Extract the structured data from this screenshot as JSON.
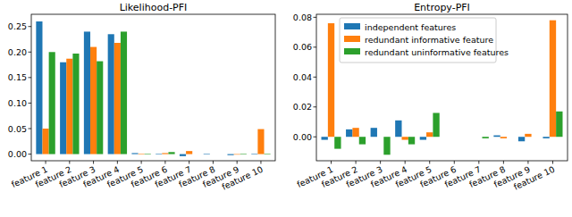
{
  "chart_data": [
    {
      "type": "bar",
      "title": "Likelihood-PFI",
      "categories": [
        "feature 1",
        "feature 2",
        "feature 3",
        "feature 4",
        "feature 5",
        "feature 6",
        "feature 7",
        "feature 8",
        "feature 9",
        "feature 10"
      ],
      "series": [
        {
          "color": "#1f77b4",
          "values": [
            0.26,
            0.18,
            0.24,
            0.235,
            0.002,
            0.001,
            -0.004,
            0.001,
            -0.002,
            0.001
          ]
        },
        {
          "color": "#ff7f0e",
          "values": [
            0.05,
            0.187,
            0.21,
            0.218,
            0.001,
            0.002,
            0.006,
            0.0,
            -0.001,
            0.049
          ]
        },
        {
          "color": "#2ca02c",
          "values": [
            0.2,
            0.197,
            0.182,
            0.24,
            0.001,
            0.004,
            0.0,
            0.0,
            0.001,
            0.001
          ]
        }
      ],
      "ylim": [
        -0.013,
        0.274
      ],
      "yticks": [
        {
          "value": 0,
          "label": "0.00"
        },
        {
          "value": 0.05,
          "label": "0.05"
        },
        {
          "value": 0.1,
          "label": "0.10"
        },
        {
          "value": 0.15,
          "label": "0.15"
        },
        {
          "value": 0.2,
          "label": "0.20"
        },
        {
          "value": 0.25,
          "label": "0.25"
        }
      ],
      "grid": false
    },
    {
      "type": "bar",
      "title": "Entropy-PFI",
      "categories": [
        "feature 1",
        "feature 2",
        "feature 3",
        "feature 4",
        "feature 5",
        "feature 6",
        "feature 7",
        "feature 8",
        "feature 9",
        "feature 10"
      ],
      "series": [
        {
          "name": "independent features",
          "color": "#1f77b4",
          "values": [
            -0.002,
            0.005,
            0.006,
            0.011,
            -0.002,
            0.0,
            0.0,
            0.001,
            -0.003,
            -0.001
          ]
        },
        {
          "name": "redundant informative feature",
          "color": "#ff7f0e",
          "values": [
            0.076,
            0.006,
            0.0,
            -0.002,
            0.003,
            0.0,
            0.0,
            -0.001,
            0.002,
            0.078
          ]
        },
        {
          "name": "redundant uninformative features",
          "color": "#2ca02c",
          "values": [
            -0.008,
            -0.005,
            -0.012,
            -0.005,
            0.016,
            0.0,
            -0.001,
            0.0,
            0.0,
            0.017
          ]
        }
      ],
      "ylim": [
        -0.016,
        0.082
      ],
      "yticks": [
        {
          "value": 0,
          "label": "0.00"
        },
        {
          "value": 0.02,
          "label": "0.02"
        },
        {
          "value": 0.04,
          "label": "0.04"
        },
        {
          "value": 0.06,
          "label": "0.06"
        },
        {
          "value": 0.08,
          "label": "0.08"
        }
      ],
      "grid": false,
      "legend": "upper left"
    }
  ]
}
